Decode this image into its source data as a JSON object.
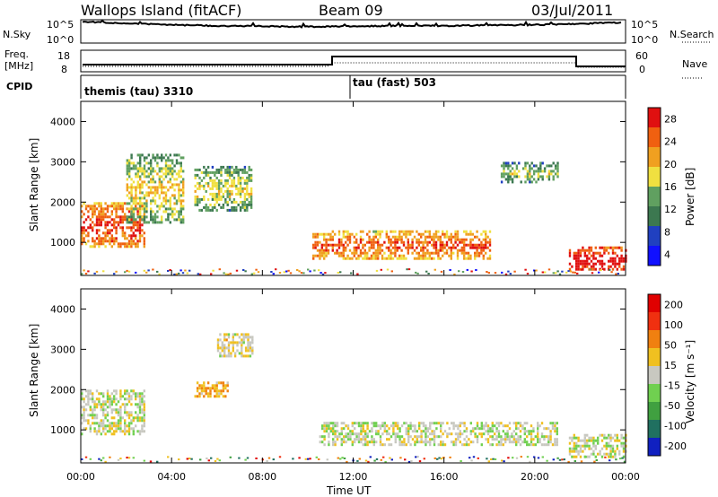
{
  "header": {
    "station": "Wallops Island (fitACF)",
    "beam": "Beam 09",
    "date": "03/Jul/2011"
  },
  "nsky_panel": {
    "left_label": "N.Sky",
    "left_ticks": [
      "10^5",
      "10^0"
    ],
    "right_ticks": [
      "10^5",
      "10^0"
    ],
    "right_label": "N.Search"
  },
  "freq_panel": {
    "left_label_1": "Freq.",
    "left_label_2": "[MHz]",
    "left_ticks": [
      "18",
      "8"
    ],
    "right_ticks": [
      "60",
      "0"
    ],
    "right_label": "Nave"
  },
  "cpid_panel": {
    "label": "CPID",
    "program_1": "themis (tau) 3310",
    "program_2": "tau (fast) 503"
  },
  "power_panel": {
    "ylabel": "Slant Range [km]",
    "yticks": [
      "4000",
      "3000",
      "2000",
      "1000"
    ],
    "colorbar_label": "Power [dB]",
    "colorbar_ticks": [
      "28",
      "24",
      "20",
      "16",
      "12",
      "8",
      "4"
    ],
    "colors": [
      "#1010ff",
      "#2040c0",
      "#3c7850",
      "#60a060",
      "#f0e040",
      "#f0a020",
      "#f06010",
      "#e01010"
    ]
  },
  "velocity_panel": {
    "ylabel": "Slant Range [km]",
    "yticks": [
      "4000",
      "3000",
      "2000",
      "1000"
    ],
    "colorbar_label": "Velocity [m s⁻¹]",
    "colorbar_ticks": [
      "200",
      "100",
      "50",
      "15",
      "-15",
      "-50",
      "-100",
      "-200"
    ],
    "colors": [
      "#1020c0",
      "#207060",
      "#40a040",
      "#70d050",
      "#c8c8c0",
      "#f0c020",
      "#f08010",
      "#f03010",
      "#e00000"
    ]
  },
  "xaxis": {
    "label": "Time UT",
    "ticks": [
      "00:00",
      "04:00",
      "08:00",
      "12:00",
      "16:00",
      "20:00",
      "00:00"
    ]
  },
  "chart_data": [
    {
      "type": "line",
      "title": "Wallops Island (fitACF)",
      "ylabel": "N.Sky",
      "x_hours": [
        0,
        2,
        4,
        6,
        8,
        10,
        12,
        14,
        16,
        18,
        20,
        22,
        24
      ],
      "series": [
        {
          "name": "N.Sky",
          "values": [
            4.6,
            4.2,
            3.9,
            3.7,
            3.6,
            3.5,
            3.6,
            3.7,
            3.7,
            3.8,
            3.9,
            4.1,
            4.4
          ]
        }
      ]
    },
    {
      "type": "line",
      "ylabel": "Freq. [MHz]",
      "ylim": [
        8,
        18
      ],
      "x_hours": [
        0,
        10.5,
        10.5,
        21.8,
        21.8,
        24
      ],
      "series": [
        {
          "name": "Freq.",
          "values": [
            10.5,
            10.5,
            15.5,
            15.5,
            10.0,
            10.0
          ]
        }
      ]
    },
    {
      "type": "heatmap",
      "ylabel": "Slant Range [km]",
      "colorbar_label": "Power [dB]",
      "zlim": [
        0,
        30
      ],
      "xlim_hours": [
        0,
        24
      ],
      "ylim_km": [
        180,
        4500
      ],
      "echo_regions": [
        {
          "t_start": 0.0,
          "t_end": 2.8,
          "range_start_km": 900,
          "range_end_km": 2000,
          "power_dB": 24
        },
        {
          "t_start": 2.0,
          "t_end": 4.5,
          "range_start_km": 1500,
          "range_end_km": 3200,
          "power_dB": 15
        },
        {
          "t_start": 5.0,
          "t_end": 7.5,
          "range_start_km": 1800,
          "range_end_km": 2900,
          "power_dB": 14
        },
        {
          "t_start": 10.2,
          "t_end": 18.0,
          "range_start_km": 600,
          "range_end_km": 1300,
          "power_dB": 22
        },
        {
          "t_start": 18.5,
          "t_end": 21.0,
          "range_start_km": 2500,
          "range_end_km": 3000,
          "power_dB": 12
        },
        {
          "t_start": 21.5,
          "t_end": 24.0,
          "range_start_km": 300,
          "range_end_km": 900,
          "power_dB": 28
        }
      ]
    },
    {
      "type": "heatmap",
      "ylabel": "Slant Range [km]",
      "colorbar_label": "Velocity [m s⁻¹]",
      "zlim": [
        -200,
        200
      ],
      "xlim_hours": [
        0,
        24
      ],
      "ylim_km": [
        180,
        4500
      ],
      "echo_regions": [
        {
          "t_start": 0.0,
          "t_end": 2.8,
          "range_start_km": 900,
          "range_end_km": 2000,
          "velocity": 0
        },
        {
          "t_start": 5.0,
          "t_end": 6.5,
          "range_start_km": 1800,
          "range_end_km": 2200,
          "velocity": 60
        },
        {
          "t_start": 6.0,
          "t_end": 7.6,
          "range_start_km": 2800,
          "range_end_km": 3400,
          "velocity": 20
        },
        {
          "t_start": 10.5,
          "t_end": 21.0,
          "range_start_km": 600,
          "range_end_km": 1200,
          "velocity": 0
        },
        {
          "t_start": 21.5,
          "t_end": 24.0,
          "range_start_km": 300,
          "range_end_km": 900,
          "velocity": 0
        }
      ]
    }
  ]
}
